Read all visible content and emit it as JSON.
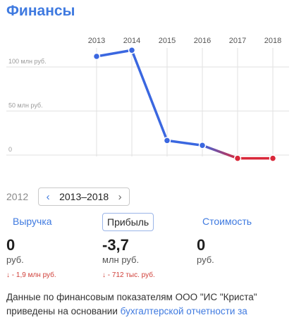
{
  "title": "Финансы",
  "chart_data": {
    "type": "line",
    "x": [
      "2013",
      "2014",
      "2015",
      "2016",
      "2017",
      "2018"
    ],
    "series": [
      {
        "values": [
          112,
          119,
          16.5,
          11,
          -3.7,
          -3.7
        ]
      }
    ],
    "ytick_labels": [
      "100 млн руб.",
      "50 млн руб.",
      "0"
    ],
    "yticks": [
      100,
      50,
      0
    ],
    "ylim": [
      -10,
      130
    ],
    "grid": true,
    "colors": {
      "positive": "#3a67e0",
      "negative": "#d9283a",
      "grid": "#e2e2e2",
      "axis_text": "#555555",
      "ylabel_text": "#9a9a9a"
    }
  },
  "period": {
    "prev_year": "2012",
    "range_label": "2013–2018",
    "prev_icon": "chevron-left-icon",
    "next_icon": "chevron-right-icon"
  },
  "tabs": [
    {
      "label": "Выручка",
      "active": false
    },
    {
      "label": "Прибыль",
      "active": true
    },
    {
      "label": "Стоимость",
      "active": false
    }
  ],
  "metrics": [
    {
      "value": "0",
      "unit": "руб.",
      "delta": "↓ - 1,9 млн руб."
    },
    {
      "value": "-3,7",
      "unit": "млн руб.",
      "delta": "↓ - 712 тыс. руб."
    },
    {
      "value": "0",
      "unit": "руб.",
      "delta": ""
    }
  ],
  "footer": {
    "text": "Данные по финансовым показателям ООО \"ИС \"Криста\" приведены на основании",
    "link": "бухгалтерской отчетности за"
  }
}
